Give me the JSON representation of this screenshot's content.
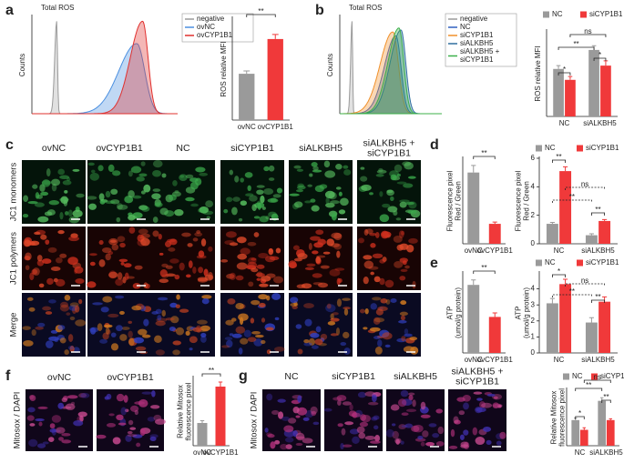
{
  "panel_labels": [
    "a",
    "b",
    "c",
    "d",
    "e",
    "f",
    "g"
  ],
  "image_panels": [
    {
      "columns": [
        "ovNC",
        "ovCYP1B1",
        "NC",
        "siCYP1B1",
        "siALKBH5",
        [
          "siALKBH5 +",
          "siCYP1B1"
        ]
      ],
      "rows": [
        "JC1 monomers",
        "JC1 polymers",
        "Merge"
      ]
    },
    {
      "columns": [
        "ovNC",
        "ovCYP1B1"
      ],
      "rows": [
        "Mitosox / DAPI"
      ]
    },
    {
      "columns": [
        "NC",
        "siCYP1B1",
        "siALKBH5",
        [
          "siALKBH5 +",
          "siCYP1B1"
        ]
      ],
      "rows": [
        "Mitosox / DAPI"
      ]
    }
  ],
  "chart_data": [
    {
      "type": "flow",
      "title": "Total ROS",
      "ylabel": "Counts",
      "series": [
        {
          "name": "negative",
          "color": "#9a9a9a"
        },
        {
          "name": "ovNC",
          "color": "#4a8fe0"
        },
        {
          "name": "ovCYP1B1",
          "color": "#e0302e"
        }
      ]
    },
    {
      "type": "bar",
      "ylabel": "ROS relative MFI",
      "categories": [
        "ovNC",
        "ovCYP1B1"
      ],
      "values": [
        1.0,
        1.75
      ],
      "errors": [
        0.06,
        0.1
      ],
      "colors": [
        "#9a9a9a",
        "#f0393a"
      ],
      "ylim": [
        0,
        2.2
      ],
      "annotations": [
        "**"
      ]
    },
    {
      "type": "flow",
      "title": "Total ROS",
      "ylabel": "Counts",
      "series": [
        {
          "name": "negative",
          "color": "#9a9a9a"
        },
        {
          "name": "NC",
          "color": "#3060c0"
        },
        {
          "name": "siCYP1B1",
          "color": "#f0902a"
        },
        {
          "name": "siALKBH5",
          "color": "#2f6f9f"
        },
        {
          "name": [
            "siALKBH5 +",
            "siCYP1B1"
          ],
          "color": "#3cb04a"
        }
      ]
    },
    {
      "type": "grouped",
      "ylabel": "ROS relative MFI",
      "categories": [
        "NC",
        "siALKBH5"
      ],
      "series": [
        {
          "name": "NC",
          "color": "#9a9a9a",
          "values": [
            1.0,
            1.4
          ],
          "errors": [
            0.07,
            0.09
          ]
        },
        {
          "name": "siCYP1B1",
          "color": "#f0393a",
          "values": [
            0.77,
            1.07
          ],
          "errors": [
            0.07,
            0.1
          ]
        }
      ],
      "ylim": [
        0,
        1.8
      ],
      "annotations": [
        "*",
        "ns",
        "**",
        "*"
      ]
    },
    {
      "type": "bar",
      "ylabel": [
        "Fluorescence pixel",
        "Red / Green"
      ],
      "categories": [
        "ovNC",
        "ovCYP1B1"
      ],
      "values": [
        2.5,
        0.7
      ],
      "errors": [
        0.25,
        0.06
      ],
      "colors": [
        "#9a9a9a",
        "#f0393a"
      ],
      "ylim": [
        0,
        3
      ],
      "annotations": [
        "**"
      ]
    },
    {
      "type": "grouped",
      "ylabel": [
        "Fluorescence pixel",
        "Red / Green"
      ],
      "categories": [
        "NC",
        "siALKBH5"
      ],
      "series": [
        {
          "name": "NC",
          "color": "#9a9a9a",
          "values": [
            1.4,
            0.6
          ],
          "errors": [
            0.1,
            0.1
          ]
        },
        {
          "name": "siCYP1B1",
          "color": "#f0393a",
          "values": [
            5.1,
            1.6
          ],
          "errors": [
            0.3,
            0.1
          ]
        }
      ],
      "ylim": [
        0,
        6
      ],
      "yticks": [
        0,
        2,
        4,
        6
      ],
      "annotations": [
        "**",
        "ns",
        "**",
        "**"
      ]
    },
    {
      "type": "bar",
      "ylabel": [
        "ATP",
        "(umol/g protein)"
      ],
      "categories": [
        "ovNC",
        "ovCYP1B1"
      ],
      "values": [
        3.4,
        1.8
      ],
      "errors": [
        0.25,
        0.2
      ],
      "colors": [
        "#9a9a9a",
        "#f0393a"
      ],
      "ylim": [
        0,
        4
      ],
      "annotations": [
        "**"
      ]
    },
    {
      "type": "grouped",
      "ylabel": [
        "ATP",
        "(umol/g protein)"
      ],
      "categories": [
        "NC",
        "siALKBH5"
      ],
      "series": [
        {
          "name": "NC",
          "color": "#9a9a9a",
          "values": [
            3.1,
            1.9
          ],
          "errors": [
            0.3,
            0.3
          ]
        },
        {
          "name": "siCYP1B1",
          "color": "#f0393a",
          "values": [
            4.3,
            3.2
          ],
          "errors": [
            0.3,
            0.3
          ]
        }
      ],
      "ylim": [
        0,
        5
      ],
      "yticks": [
        0,
        1,
        2,
        3,
        4
      ],
      "annotations": [
        "*",
        "ns",
        "**",
        "**"
      ]
    },
    {
      "type": "bar",
      "ylabel": [
        "Relative Mitosox",
        "fluorescence pixel"
      ],
      "categories": [
        "ovNC",
        "ovCYP1B1"
      ],
      "values": [
        1.0,
        2.6
      ],
      "errors": [
        0.1,
        0.2
      ],
      "colors": [
        "#9a9a9a",
        "#f0393a"
      ],
      "ylim": [
        0,
        3
      ],
      "annotations": [
        "**"
      ]
    },
    {
      "type": "grouped",
      "ylabel": [
        "Relative Mitosox",
        "fluorescence pixel"
      ],
      "categories": [
        "NC",
        "siALKBH5"
      ],
      "series": [
        {
          "name": "NC",
          "color": "#9a9a9a",
          "values": [
            1.0,
            1.75
          ],
          "errors": [
            0.08,
            0.12
          ]
        },
        {
          "name": "siCYP1B1",
          "color": "#f0393a",
          "values": [
            0.62,
            1.0
          ],
          "errors": [
            0.08,
            0.05
          ]
        }
      ],
      "ylim": [
        0,
        2.2
      ],
      "annotations": [
        "*",
        "ns",
        "**",
        "**"
      ]
    }
  ]
}
